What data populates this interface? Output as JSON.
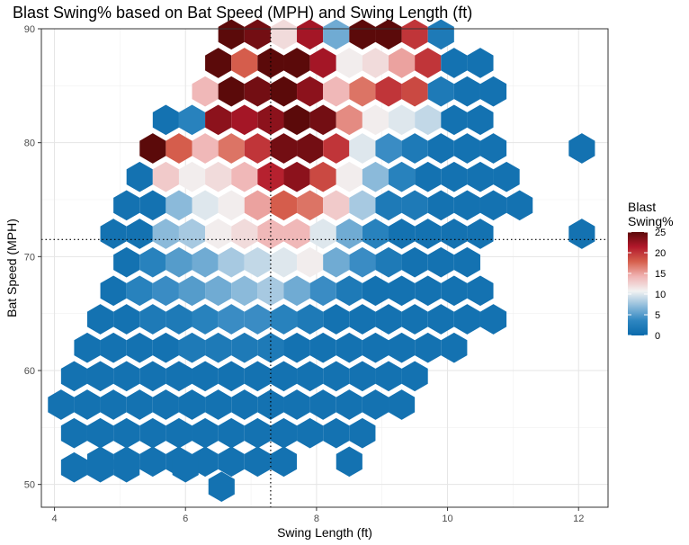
{
  "chart_data": {
    "type": "heatmap",
    "subtype": "hexbin",
    "title": "Blast Swing% based on Bat Speed (MPH) and Swing Length (ft)",
    "xlabel": "Swing Length (ft)",
    "ylabel": "Bat Speed (MPH)",
    "xlim": [
      3.8,
      12.45
    ],
    "ylim": [
      48,
      90
    ],
    "xticks": [
      4,
      6,
      8,
      10,
      12
    ],
    "yticks": [
      50,
      60,
      70,
      80,
      90
    ],
    "grid": true,
    "reference_lines": {
      "x": 7.3,
      "y": 71.5,
      "style": "dotted"
    },
    "legend": {
      "title_lines": [
        "Blast",
        "Swing%"
      ],
      "position": "right",
      "range": [
        0,
        25
      ],
      "ticks": [
        0,
        5,
        10,
        15,
        20,
        25
      ]
    },
    "colorscale": [
      "#0a6aab",
      "#2e86c1",
      "#8fbcdb",
      "#f2f2f2",
      "#f0b3b3",
      "#d6604d",
      "#b2182b",
      "#5b0a0a"
    ],
    "value_unit": "Blast Swing%",
    "rows": [
      {
        "y": 89.5,
        "cells": [
          [
            6.7,
            25
          ],
          [
            7.1,
            24
          ],
          [
            7.5,
            12
          ],
          [
            7.9,
            22
          ],
          [
            8.3,
            6
          ],
          [
            8.7,
            25
          ],
          [
            9.1,
            25
          ],
          [
            9.5,
            20
          ],
          [
            9.9,
            2
          ]
        ]
      },
      {
        "y": 87.0,
        "cells": [
          [
            6.5,
            25
          ],
          [
            6.9,
            18
          ],
          [
            7.3,
            25
          ],
          [
            7.7,
            25
          ],
          [
            8.1,
            22
          ],
          [
            8.5,
            11
          ],
          [
            8.9,
            12
          ],
          [
            9.3,
            15
          ],
          [
            9.7,
            20
          ],
          [
            10.1,
            1
          ],
          [
            10.5,
            1
          ]
        ]
      },
      {
        "y": 84.5,
        "cells": [
          [
            6.3,
            14
          ],
          [
            6.7,
            25
          ],
          [
            7.1,
            24
          ],
          [
            7.5,
            25
          ],
          [
            7.9,
            23
          ],
          [
            8.3,
            14
          ],
          [
            8.7,
            17
          ],
          [
            9.1,
            20
          ],
          [
            9.5,
            19
          ],
          [
            9.9,
            2
          ],
          [
            10.3,
            1
          ],
          [
            10.7,
            1
          ]
        ]
      },
      {
        "y": 82.0,
        "cells": [
          [
            5.7,
            1
          ],
          [
            6.1,
            3
          ],
          [
            6.5,
            23
          ],
          [
            6.9,
            22
          ],
          [
            7.3,
            23
          ],
          [
            7.7,
            25
          ],
          [
            8.1,
            24
          ],
          [
            8.5,
            16
          ],
          [
            8.9,
            11
          ],
          [
            9.3,
            10
          ],
          [
            9.7,
            9
          ],
          [
            10.1,
            1
          ],
          [
            10.5,
            1
          ]
        ]
      },
      {
        "y": 79.5,
        "cells": [
          [
            5.5,
            25
          ],
          [
            5.9,
            18
          ],
          [
            6.3,
            14
          ],
          [
            6.7,
            17
          ],
          [
            7.1,
            20
          ],
          [
            7.5,
            24
          ],
          [
            7.9,
            24
          ],
          [
            8.3,
            20
          ],
          [
            8.7,
            10
          ],
          [
            9.1,
            4
          ],
          [
            9.5,
            2
          ],
          [
            9.9,
            1
          ],
          [
            10.3,
            1
          ],
          [
            10.7,
            1
          ],
          [
            12.05,
            1
          ]
        ]
      },
      {
        "y": 77.0,
        "cells": [
          [
            5.3,
            1
          ],
          [
            5.7,
            13
          ],
          [
            6.1,
            11
          ],
          [
            6.5,
            12
          ],
          [
            6.9,
            14
          ],
          [
            7.3,
            21
          ],
          [
            7.7,
            23
          ],
          [
            8.1,
            19
          ],
          [
            8.5,
            11
          ],
          [
            8.9,
            7
          ],
          [
            9.3,
            3
          ],
          [
            9.7,
            1
          ],
          [
            10.1,
            1
          ],
          [
            10.5,
            1
          ],
          [
            10.9,
            1
          ]
        ]
      },
      {
        "y": 74.5,
        "cells": [
          [
            5.1,
            1
          ],
          [
            5.5,
            1
          ],
          [
            5.9,
            7
          ],
          [
            6.3,
            10
          ],
          [
            6.7,
            11
          ],
          [
            7.1,
            15
          ],
          [
            7.5,
            18
          ],
          [
            7.9,
            17
          ],
          [
            8.3,
            13
          ],
          [
            8.7,
            8
          ],
          [
            9.1,
            2
          ],
          [
            9.5,
            2
          ],
          [
            9.9,
            1
          ],
          [
            10.3,
            1
          ],
          [
            10.7,
            1
          ],
          [
            11.1,
            1
          ]
        ]
      },
      {
        "y": 72.0,
        "cells": [
          [
            4.9,
            1
          ],
          [
            5.3,
            1
          ],
          [
            5.7,
            7
          ],
          [
            6.1,
            8
          ],
          [
            6.5,
            11
          ],
          [
            6.9,
            12
          ],
          [
            7.3,
            14
          ],
          [
            7.7,
            14
          ],
          [
            8.1,
            10
          ],
          [
            8.5,
            6
          ],
          [
            8.9,
            3
          ],
          [
            9.3,
            1
          ],
          [
            9.7,
            1
          ],
          [
            10.1,
            1
          ],
          [
            10.5,
            1
          ],
          [
            12.05,
            1
          ]
        ]
      },
      {
        "y": 69.5,
        "cells": [
          [
            5.1,
            1
          ],
          [
            5.5,
            3
          ],
          [
            5.9,
            5
          ],
          [
            6.3,
            6
          ],
          [
            6.7,
            8
          ],
          [
            7.1,
            9
          ],
          [
            7.5,
            10
          ],
          [
            7.9,
            11
          ],
          [
            8.3,
            6
          ],
          [
            8.7,
            4
          ],
          [
            9.1,
            2
          ],
          [
            9.5,
            1
          ],
          [
            9.9,
            1
          ],
          [
            10.3,
            1
          ]
        ]
      },
      {
        "y": 67.0,
        "cells": [
          [
            4.9,
            1
          ],
          [
            5.3,
            3
          ],
          [
            5.7,
            4
          ],
          [
            6.1,
            5
          ],
          [
            6.5,
            6
          ],
          [
            6.9,
            7
          ],
          [
            7.3,
            8
          ],
          [
            7.7,
            6
          ],
          [
            8.1,
            4
          ],
          [
            8.5,
            2
          ],
          [
            8.9,
            1
          ],
          [
            9.3,
            1
          ],
          [
            9.7,
            1
          ],
          [
            10.1,
            1
          ],
          [
            10.5,
            1
          ]
        ]
      },
      {
        "y": 64.5,
        "cells": [
          [
            4.7,
            1
          ],
          [
            5.1,
            1
          ],
          [
            5.5,
            2
          ],
          [
            5.9,
            2
          ],
          [
            6.3,
            3
          ],
          [
            6.7,
            4
          ],
          [
            7.1,
            4
          ],
          [
            7.5,
            3
          ],
          [
            7.9,
            2
          ],
          [
            8.3,
            1
          ],
          [
            8.7,
            1
          ],
          [
            9.1,
            1
          ],
          [
            9.5,
            1
          ],
          [
            9.9,
            1
          ],
          [
            10.3,
            1
          ],
          [
            10.7,
            1
          ]
        ]
      },
      {
        "y": 62.0,
        "cells": [
          [
            4.5,
            1
          ],
          [
            4.9,
            1
          ],
          [
            5.3,
            1
          ],
          [
            5.7,
            1
          ],
          [
            6.1,
            2
          ],
          [
            6.5,
            2
          ],
          [
            6.9,
            2
          ],
          [
            7.3,
            2
          ],
          [
            7.7,
            1
          ],
          [
            8.1,
            1
          ],
          [
            8.5,
            1
          ],
          [
            8.9,
            1
          ],
          [
            9.3,
            1
          ],
          [
            9.7,
            1
          ],
          [
            10.1,
            1
          ]
        ]
      },
      {
        "y": 59.5,
        "cells": [
          [
            4.3,
            1
          ],
          [
            4.7,
            1
          ],
          [
            5.1,
            1
          ],
          [
            5.5,
            1
          ],
          [
            5.9,
            1
          ],
          [
            6.3,
            1
          ],
          [
            6.7,
            1
          ],
          [
            7.1,
            1
          ],
          [
            7.5,
            1
          ],
          [
            7.9,
            1
          ],
          [
            8.3,
            1
          ],
          [
            8.7,
            1
          ],
          [
            9.1,
            1
          ],
          [
            9.5,
            1
          ]
        ]
      },
      {
        "y": 57.0,
        "cells": [
          [
            4.1,
            1
          ],
          [
            4.5,
            1
          ],
          [
            4.9,
            1
          ],
          [
            5.3,
            1
          ],
          [
            5.7,
            1
          ],
          [
            6.1,
            1
          ],
          [
            6.5,
            1
          ],
          [
            6.9,
            1
          ],
          [
            7.3,
            1
          ],
          [
            7.7,
            1
          ],
          [
            8.1,
            1
          ],
          [
            8.5,
            1
          ],
          [
            8.9,
            1
          ],
          [
            9.3,
            1
          ]
        ]
      },
      {
        "y": 54.5,
        "cells": [
          [
            4.3,
            1
          ],
          [
            4.7,
            1
          ],
          [
            5.1,
            1
          ],
          [
            5.5,
            1
          ],
          [
            5.9,
            1
          ],
          [
            6.3,
            1
          ],
          [
            6.7,
            1
          ],
          [
            7.1,
            1
          ],
          [
            7.5,
            1
          ],
          [
            7.9,
            1
          ],
          [
            8.3,
            1
          ],
          [
            8.7,
            1
          ]
        ]
      },
      {
        "y": 52.0,
        "cells": [
          [
            4.7,
            1
          ],
          [
            5.1,
            1
          ],
          [
            5.5,
            1
          ],
          [
            5.9,
            1
          ],
          [
            6.3,
            1
          ],
          [
            6.7,
            1
          ],
          [
            7.1,
            1
          ],
          [
            7.5,
            1
          ],
          [
            8.5,
            1
          ]
        ]
      },
      {
        "y": 51.5,
        "cells": [
          [
            4.3,
            1
          ],
          [
            4.7,
            1
          ],
          [
            5.1,
            1
          ],
          [
            6.0,
            1
          ]
        ]
      },
      {
        "y": 49.8,
        "cells": [
          [
            6.55,
            1
          ]
        ]
      }
    ]
  }
}
